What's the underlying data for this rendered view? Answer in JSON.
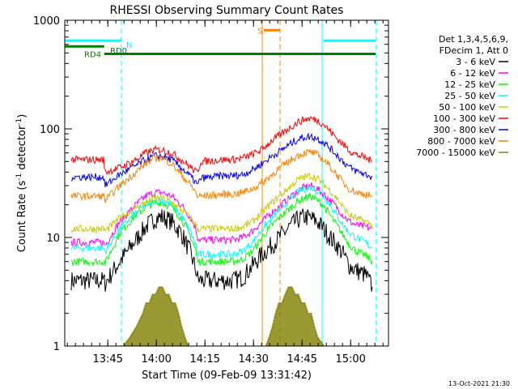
{
  "chart_data": {
    "type": "line",
    "title": "RHESSI Observing Summary Count Rates",
    "xlabel": "Start Time (09-Feb-09 13:31:42)",
    "ylabel_main": "Count Rate (s",
    "ylabel_sup1": "-1",
    "ylabel_mid": " detector",
    "ylabel_sup2": "-1",
    "ylabel_end": ")",
    "x_unit": "minutes since 13:31:42",
    "xlim": [
      0,
      100
    ],
    "ylim": [
      1,
      1000
    ],
    "y_scale": "log",
    "x_ticks": [
      {
        "value": 13.3,
        "label": "13:45"
      },
      {
        "value": 28.3,
        "label": "14:00"
      },
      {
        "value": 43.3,
        "label": "14:15"
      },
      {
        "value": 58.3,
        "label": "14:30"
      },
      {
        "value": 73.3,
        "label": "14:45"
      },
      {
        "value": 88.3,
        "label": "15:00"
      }
    ],
    "y_ticks": [
      {
        "value": 1,
        "label": "1"
      },
      {
        "value": 10,
        "label": "10"
      },
      {
        "value": 100,
        "label": "100"
      },
      {
        "value": 1000,
        "label": "1000"
      }
    ],
    "legend_header": [
      "Det 1,3,4,5,6,9,",
      "FDecim 1, Att 0"
    ],
    "legend_position": "right",
    "series": [
      {
        "name": "3 - 6 keV",
        "color": "#000000",
        "x": [
          2,
          12,
          12.5,
          17,
          22,
          25,
          28,
          30,
          33,
          36,
          39,
          40.5,
          41,
          42,
          49,
          52,
          55,
          58,
          61,
          64,
          67,
          70,
          72,
          74,
          76,
          78,
          80,
          82,
          84,
          86,
          88,
          90,
          93,
          95
        ],
        "y": [
          4,
          4,
          3.8,
          6,
          9.5,
          12.5,
          15,
          15.5,
          14,
          11,
          7,
          5,
          4.2,
          4,
          4,
          4,
          4.3,
          5.5,
          7,
          8.5,
          10.5,
          13,
          14.5,
          15.5,
          15,
          14,
          12,
          10,
          8.5,
          7,
          5.5,
          5,
          4.5,
          3.5
        ]
      },
      {
        "name": "6 - 12 keV",
        "color": "#ff00ff",
        "x": [
          2,
          12,
          12.5,
          17,
          22,
          25,
          28,
          30,
          33,
          36,
          39,
          40.5,
          41,
          42,
          49,
          52,
          55,
          58,
          61,
          64,
          67,
          70,
          72,
          74,
          76,
          78,
          80,
          82,
          84,
          86,
          88,
          90,
          93,
          95
        ],
        "y": [
          9,
          9,
          8.5,
          14,
          20,
          24,
          26,
          26,
          24,
          20,
          15,
          12,
          10,
          9.5,
          9.5,
          9.5,
          10,
          11.5,
          14,
          17,
          20,
          24,
          27,
          29,
          30,
          28,
          25,
          22,
          19,
          16,
          14,
          13,
          12.5,
          12
        ]
      },
      {
        "name": "12 - 25 keV",
        "color": "#00ff00",
        "x": [
          2,
          12,
          12.5,
          17,
          22,
          25,
          28,
          30,
          33,
          36,
          39,
          40.5,
          41,
          42,
          49,
          52,
          55,
          58,
          61,
          64,
          67,
          70,
          72,
          74,
          76,
          78,
          80,
          82,
          84,
          86,
          88,
          90,
          93,
          95
        ],
        "y": [
          6,
          6,
          5.8,
          11,
          16,
          19,
          21,
          21,
          19,
          15,
          10,
          7.5,
          6,
          6,
          6,
          6,
          6.3,
          7.5,
          10,
          13,
          16,
          19,
          21.5,
          23,
          24,
          22,
          19.5,
          16,
          13,
          10.5,
          8.5,
          7.5,
          6.8,
          6
        ]
      },
      {
        "name": "25 - 50 keV",
        "color": "#00ffff",
        "x": [
          2,
          12,
          12.5,
          17,
          22,
          25,
          28,
          30,
          33,
          36,
          39,
          40.5,
          41,
          42,
          49,
          52,
          55,
          58,
          61,
          64,
          67,
          70,
          72,
          74,
          76,
          78,
          80,
          82,
          84,
          86,
          88,
          90,
          93,
          95
        ],
        "y": [
          8,
          8,
          7.5,
          12,
          17,
          20,
          22,
          22,
          20,
          16,
          11,
          8.5,
          7,
          7,
          7,
          7,
          7.5,
          9,
          12,
          15,
          19,
          23,
          26,
          28,
          29,
          27,
          24,
          20,
          16,
          13,
          11,
          10,
          9,
          8
        ]
      },
      {
        "name": "50 - 100 keV",
        "color": "#cccc00",
        "x": [
          2,
          12,
          12.5,
          17,
          22,
          25,
          28,
          30,
          33,
          36,
          39,
          40.5,
          41,
          42,
          49,
          52,
          55,
          58,
          61,
          64,
          67,
          70,
          72,
          74,
          76,
          78,
          80,
          82,
          84,
          86,
          88,
          90,
          93,
          95
        ],
        "y": [
          12,
          12,
          11.5,
          15,
          19,
          21,
          23,
          23,
          21,
          18,
          15,
          13,
          12,
          12,
          12,
          12,
          12.5,
          14,
          17,
          21,
          25,
          30,
          34,
          36,
          37,
          35,
          31,
          27,
          23,
          19,
          16,
          15,
          14,
          13
        ]
      },
      {
        "name": "100 - 300 keV",
        "color": "#ff0000",
        "x": [
          2,
          12,
          12.5,
          17,
          22,
          25,
          28,
          30,
          33,
          36,
          39,
          40.5,
          41,
          42,
          49,
          52,
          55,
          58,
          61,
          64,
          67,
          70,
          72,
          74,
          76,
          78,
          80,
          82,
          84,
          86,
          88,
          90,
          93,
          95
        ],
        "y": [
          52,
          52,
          40,
          44,
          52,
          60,
          64,
          64,
          60,
          52,
          44,
          40,
          40,
          50,
          52,
          52,
          54,
          58,
          65,
          78,
          90,
          105,
          115,
          122,
          125,
          120,
          110,
          95,
          82,
          72,
          63,
          58,
          54,
          50
        ]
      },
      {
        "name": "300 - 800 keV",
        "color": "#0000ff",
        "x": [
          2,
          12,
          12.5,
          17,
          22,
          25,
          28,
          30,
          33,
          36,
          39,
          40.5,
          41,
          42,
          49,
          52,
          55,
          58,
          61,
          64,
          67,
          70,
          72,
          74,
          76,
          78,
          80,
          82,
          84,
          86,
          88,
          90,
          93,
          95
        ],
        "y": [
          36,
          36,
          30,
          38,
          46,
          52,
          56,
          56,
          52,
          44,
          36,
          32,
          30,
          35,
          37,
          37,
          38,
          42,
          48,
          56,
          64,
          74,
          80,
          84,
          85,
          82,
          75,
          66,
          58,
          50,
          44,
          41,
          38,
          36
        ]
      },
      {
        "name": "800 - 7000 keV",
        "color": "#ff8000",
        "x": [
          2,
          12,
          12.5,
          17,
          22,
          25,
          28,
          30,
          33,
          36,
          39,
          40.5,
          41,
          42,
          49,
          52,
          55,
          58,
          61,
          64,
          67,
          70,
          72,
          74,
          76,
          78,
          80,
          82,
          84,
          86,
          88,
          90,
          93,
          95
        ],
        "y": [
          24,
          24,
          22,
          30,
          40,
          48,
          54,
          54,
          48,
          38,
          30,
          26,
          24,
          24,
          25,
          25,
          26,
          28,
          32,
          38,
          45,
          52,
          57,
          60,
          61,
          58,
          52,
          45,
          38,
          32,
          28,
          26,
          25,
          24
        ]
      },
      {
        "name": "7000 - 15000 keV",
        "color": "#808000",
        "x": [
          18,
          20,
          22,
          24,
          25,
          26,
          27,
          28,
          29,
          30,
          31,
          32,
          33,
          34,
          35,
          36,
          37,
          38,
          62,
          63,
          64,
          65,
          66,
          67,
          68,
          69,
          70,
          71,
          72,
          73,
          74,
          75,
          76,
          77,
          78,
          80,
          82
        ],
        "y": [
          1,
          1.2,
          1.5,
          2,
          2.5,
          2.5,
          3,
          3,
          3.5,
          3.5,
          3,
          3,
          2.5,
          2.5,
          2,
          1.5,
          1.2,
          1,
          1,
          1.2,
          1.5,
          2,
          2.5,
          2.5,
          3,
          3.5,
          3.5,
          3,
          3,
          2.5,
          2.5,
          2,
          2,
          1.5,
          1.2,
          1,
          1
        ]
      }
    ],
    "flags": [
      {
        "label": "N",
        "color": "#00ffff",
        "segments": [
          [
            0,
            17.5
          ],
          [
            80,
            96
          ]
        ],
        "level": 650,
        "label_x": 19
      },
      {
        "label": "RD0",
        "color": "#008000",
        "segments": [
          [
            0,
            12.2
          ]
        ],
        "level": 575,
        "label_x": 14
      },
      {
        "label": "RD4",
        "color": "#008000",
        "segments": [
          [
            12.2,
            42.5
          ],
          [
            42.5,
            96
          ]
        ],
        "level": 490,
        "label_x": 6
      },
      {
        "label": "S",
        "color": "#ff8000",
        "segments": [
          [
            61.5,
            66.5
          ]
        ],
        "level": 810,
        "label_x": 59.5
      }
    ],
    "vlines": [
      {
        "x": 0,
        "color": "#00ffff",
        "style": "solid"
      },
      {
        "x": 17.5,
        "color": "#00ffff",
        "style": "dashed"
      },
      {
        "x": 61,
        "color": "#ff8000",
        "style": "solid"
      },
      {
        "x": 66.5,
        "color": "#ff8000",
        "style": "dashed"
      },
      {
        "x": 79.5,
        "color": "#00ffff",
        "style": "solid"
      },
      {
        "x": 96.2,
        "color": "#00ffff",
        "style": "dashed"
      }
    ],
    "timestamp": "13-Oct-2021 21:30"
  }
}
